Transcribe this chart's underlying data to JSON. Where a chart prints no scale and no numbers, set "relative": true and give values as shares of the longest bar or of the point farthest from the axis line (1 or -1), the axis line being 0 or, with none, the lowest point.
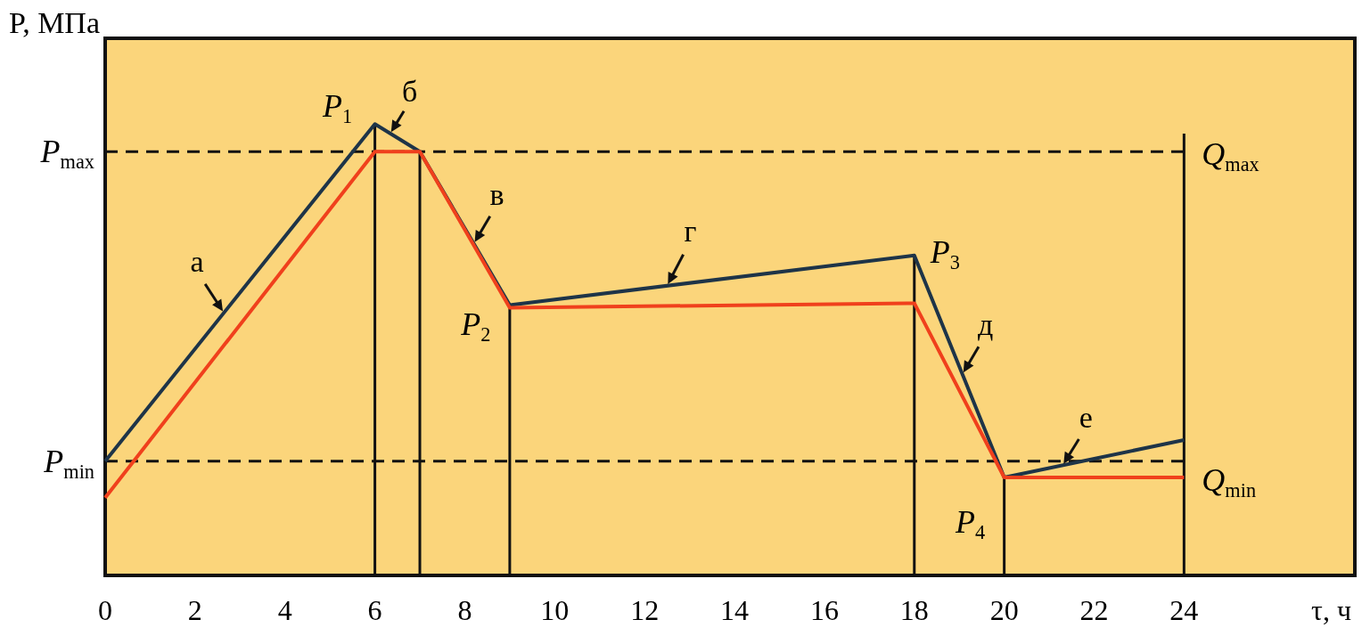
{
  "chart_data": {
    "type": "line",
    "relative": true,
    "xlabel": "τ, ч",
    "ylabel": "P, МПа",
    "x": [
      0,
      6,
      7,
      9,
      18,
      20,
      24
    ],
    "xlim": [
      0,
      27.8
    ],
    "xticks": [
      0,
      2,
      4,
      6,
      8,
      10,
      12,
      14,
      16,
      18,
      20,
      22,
      24
    ],
    "series": [
      {
        "color": "#1e3448",
        "values": [
          0.253,
          1,
          0.939,
          0.599,
          0.709,
          0.217,
          0.3
        ]
      },
      {
        "color": "#f0401c",
        "values": [
          0.172,
          0.939,
          0.939,
          0.593,
          0.603,
          0.217,
          0.217
        ]
      }
    ],
    "ref_lines": [
      {
        "axis": "y",
        "value": 0.939,
        "label": "P$_{max}$",
        "line_style": "dashed",
        "color": "#111111"
      },
      {
        "axis": "y",
        "value": 0.253,
        "label": "P$_{min}$",
        "line_style": "dashed",
        "color": "#111111"
      },
      {
        "axis": "x",
        "value": 6,
        "line_style": "solid",
        "color": "#111111"
      },
      {
        "axis": "x",
        "value": 7,
        "line_style": "solid",
        "color": "#111111"
      },
      {
        "axis": "x",
        "value": 9,
        "line_style": "solid",
        "color": "#111111"
      },
      {
        "axis": "x",
        "value": 18,
        "line_style": "solid",
        "color": "#111111"
      },
      {
        "axis": "x",
        "value": 20,
        "line_style": "solid",
        "color": "#111111"
      },
      {
        "axis": "x",
        "value": 24,
        "line_style": "solid",
        "color": "#111111"
      }
    ],
    "annotations": [
      {
        "text": "P$_{1}$",
        "x": 6,
        "y": 1
      },
      {
        "text": "P$_{2}$",
        "x": 9,
        "y": 0.593
      },
      {
        "text": "P$_{3}$",
        "x": 18,
        "y": 0.709
      },
      {
        "text": "P$_{4}$",
        "x": 20,
        "y": 0.217
      },
      {
        "text": "а",
        "x": 2.64,
        "y": 0.582
      },
      {
        "text": "б",
        "x": 6.34,
        "y": 0.979
      },
      {
        "text": "в",
        "x": 8.2,
        "y": 0.735
      },
      {
        "text": "г",
        "x": 12.5,
        "y": 0.642
      },
      {
        "text": "д",
        "x": 19.07,
        "y": 0.446
      },
      {
        "text": "е",
        "x": 21.3,
        "y": 0.244
      },
      {
        "text": "Q$_{max}$",
        "x": 24,
        "y": 0.939
      },
      {
        "text": "Q$_{min}$",
        "x": 24,
        "y": 0.217
      }
    ],
    "grid": false,
    "marker": "none",
    "line_style": "solid"
  }
}
